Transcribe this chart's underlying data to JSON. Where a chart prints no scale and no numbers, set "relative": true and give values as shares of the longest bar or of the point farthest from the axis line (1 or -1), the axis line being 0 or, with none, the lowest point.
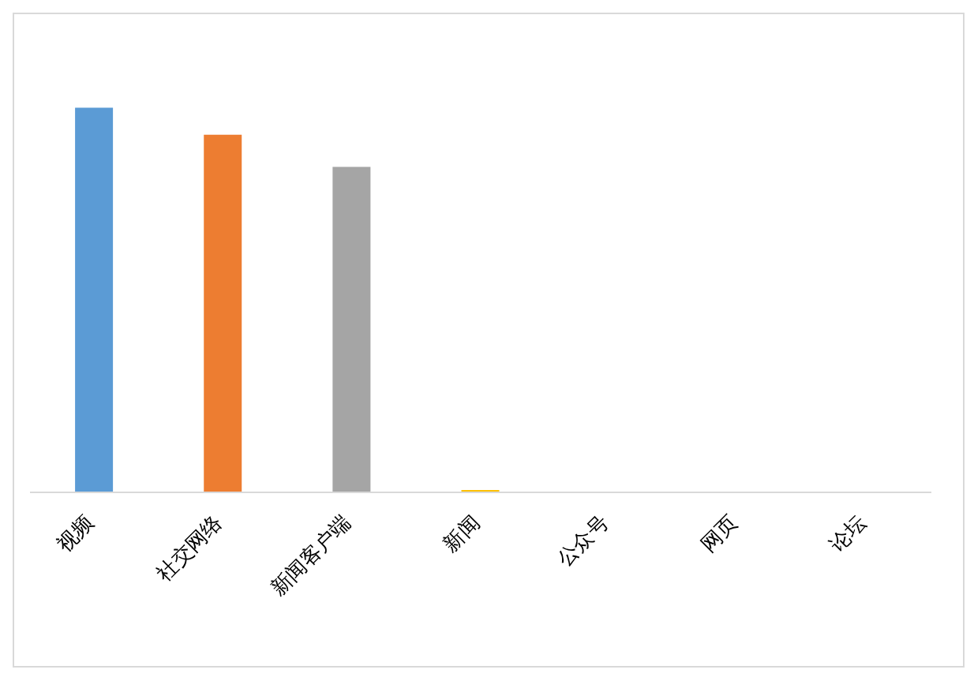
{
  "chart_data": {
    "type": "bar",
    "relative": true,
    "categories": [
      "视频",
      "社交网络",
      "新闻客户端",
      "新闻",
      "公众号",
      "网页",
      "论坛"
    ],
    "values": [
      1,
      0.93,
      0.846,
      0.006,
      0,
      0,
      0
    ],
    "colors": [
      "#5b9bd5",
      "#ed7d31",
      "#a5a5a5",
      "#ffc000",
      "#4472c4",
      "#70ad47",
      "#255e91"
    ],
    "grid": false,
    "legend": false
  }
}
